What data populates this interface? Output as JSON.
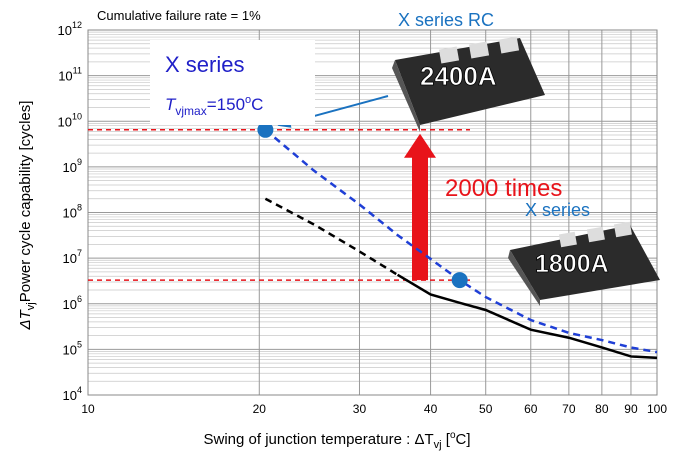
{
  "chart_data": {
    "type": "line",
    "annotation_top": "Cumulative failure rate = 1%",
    "x_label": {
      "text": "Swing of junction temperature : ΔT",
      "sub": "vj",
      "rest": " [",
      "sup": "o",
      "end": "C]"
    },
    "y_label": {
      "text": "ΔT",
      "sub": "vj",
      "rest": "Power cycle  capability [cycles]"
    },
    "log_x": true,
    "log_y": true,
    "grid": true,
    "minor_grid": true,
    "xlim": [
      10,
      100
    ],
    "xticks": [
      10,
      20,
      30,
      40,
      50,
      60,
      70,
      80,
      90,
      100
    ],
    "ylim": [
      10000,
      1000000000000
    ],
    "yticks": [
      {
        "value": 10000,
        "label": "10",
        "sup": "4"
      },
      {
        "value": 100000,
        "label": "10",
        "sup": "5"
      },
      {
        "value": 1000000,
        "label": "10",
        "sup": "6"
      },
      {
        "value": 10000000,
        "label": "10",
        "sup": "7"
      },
      {
        "value": 100000000,
        "label": "10",
        "sup": "8"
      },
      {
        "value": 1000000000,
        "label": "10",
        "sup": "9"
      },
      {
        "value": 10000000000,
        "label": "10",
        "sup": "10"
      },
      {
        "value": 100000000000,
        "label": "10",
        "sup": "11"
      },
      {
        "value": 1000000000000,
        "label": "10",
        "sup": "12"
      }
    ],
    "x": [
      20.5,
      25,
      30,
      35,
      40,
      45,
      50,
      60,
      70,
      80,
      90,
      100
    ],
    "series": [
      {
        "name": "X series RC",
        "color": "#1f3fd6",
        "dashed": true,
        "marker_color": "#1a72c0",
        "marker_at": [
          20.5,
          45
        ],
        "values": [
          6500000000,
          810000000,
          150000000,
          32000000,
          9600000,
          3300000,
          1400000,
          440000,
          230000,
          160000,
          110000,
          87000
        ]
      },
      {
        "name": "X series",
        "color": "#000000",
        "dashed_below": 40,
        "values": [
          200000000,
          54000000,
          14000000,
          4300000,
          1600000,
          1050000,
          730000,
          270000,
          180000,
          110000,
          70000,
          65000
        ]
      }
    ],
    "hlines": [
      {
        "value": 6500000000,
        "color": "#e8131a"
      },
      {
        "value": 3300000,
        "color": "#e8131a"
      }
    ],
    "ratio_label": "2000 times",
    "box": {
      "title": "X series",
      "cond": {
        "symbol": "T",
        "sub": "vjmax",
        "rest": "=150",
        "sup": "o",
        "end": "C"
      }
    },
    "module_labels": [
      "2400A",
      "1800A"
    ]
  }
}
